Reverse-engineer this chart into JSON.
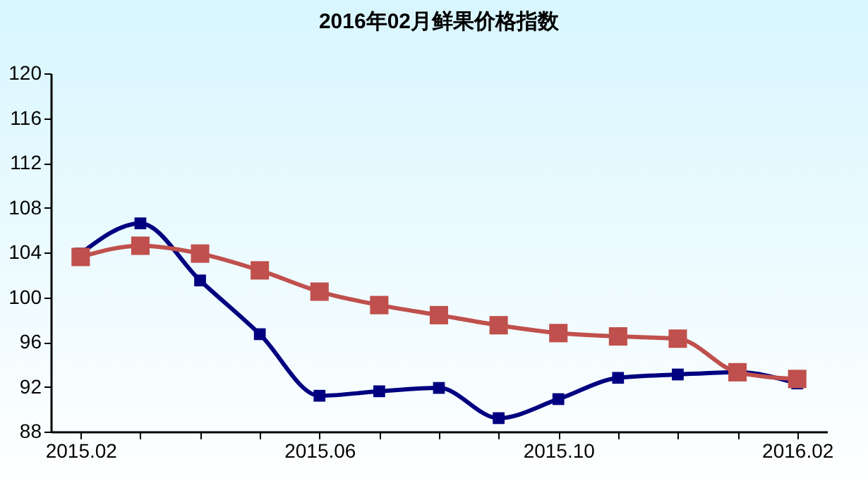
{
  "chart_data": {
    "type": "line",
    "title": "2016年02月鲜果价格指数",
    "categories": [
      "2015.02",
      null,
      null,
      null,
      "2015.06",
      null,
      null,
      null,
      "2015.10",
      null,
      null,
      null,
      "2016.02"
    ],
    "series": [
      {
        "color": "#000080",
        "marker": "square",
        "values": [
          103.9,
          106.6,
          101.5,
          96.7,
          91.2,
          91.6,
          91.9,
          89.2,
          90.9,
          92.8,
          93.1,
          93.3,
          92.3
        ]
      },
      {
        "color": "#c0504d",
        "marker": "square",
        "values": [
          103.6,
          104.6,
          103.9,
          102.4,
          100.5,
          99.3,
          98.4,
          97.5,
          96.8,
          96.5,
          96.3,
          93.3,
          92.7
        ]
      }
    ],
    "ylim": [
      88,
      120
    ],
    "yticks": [
      88,
      92,
      96,
      100,
      104,
      108,
      112,
      116,
      120
    ],
    "grid": false
  }
}
